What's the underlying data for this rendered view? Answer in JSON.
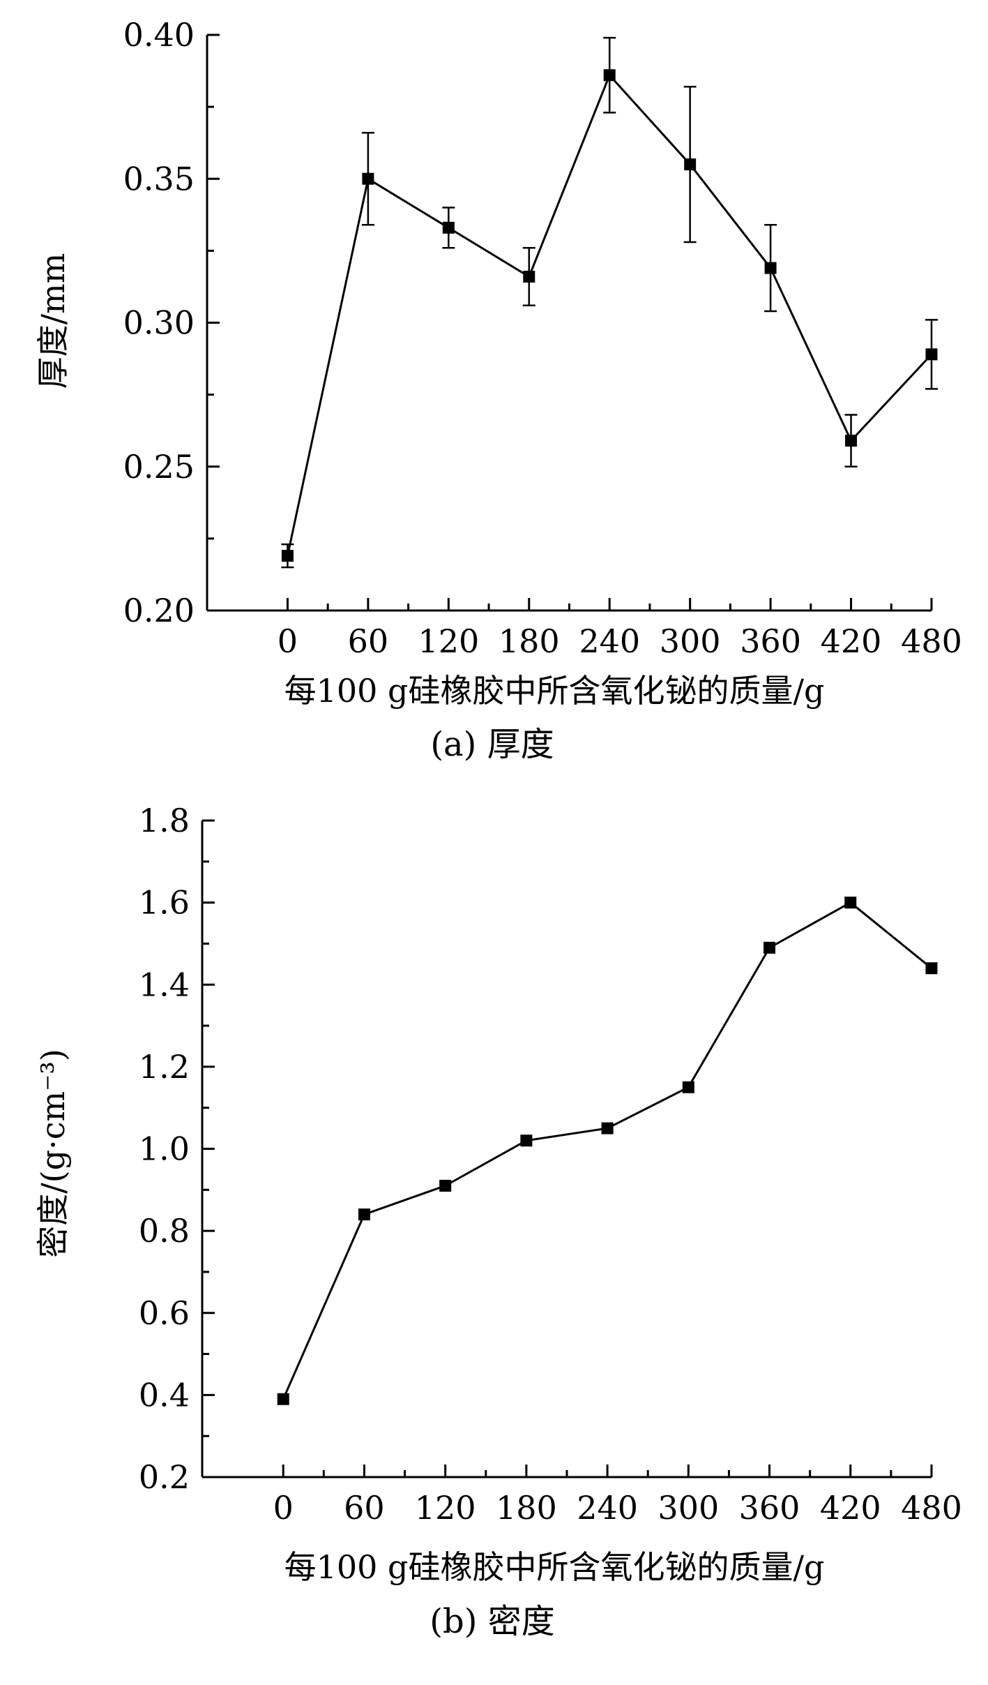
{
  "chart_data": [
    {
      "type": "line",
      "caption": "(a) 厚度",
      "xlabel": "每100 g硅橡胶中所含氧化铋的质量/g",
      "ylabel": "厚度/mm",
      "x": [
        0,
        60,
        120,
        180,
        240,
        300,
        360,
        420,
        480
      ],
      "xlim": [
        -60,
        480
      ],
      "xticks": [
        0,
        60,
        120,
        180,
        240,
        300,
        360,
        420,
        480
      ],
      "ylim": [
        0.2,
        0.4
      ],
      "yticks": [
        "0.20",
        "0.25",
        "0.30",
        "0.35",
        "0.40"
      ],
      "values": [
        0.219,
        0.35,
        0.333,
        0.316,
        0.386,
        0.355,
        0.319,
        0.259,
        0.289
      ],
      "error_bars": [
        0.004,
        0.016,
        0.007,
        0.01,
        0.013,
        0.027,
        0.015,
        0.009,
        0.012
      ],
      "marker": "square",
      "grid": false,
      "line_color": "#000000"
    },
    {
      "type": "line",
      "caption": "(b) 密度",
      "xlabel": "每100 g硅橡胶中所含氧化铋的质量/g",
      "ylabel": "密度/(g·cm⁻³)",
      "x": [
        0,
        60,
        120,
        180,
        240,
        300,
        360,
        420,
        480
      ],
      "xlim": [
        -60,
        480
      ],
      "xticks": [
        0,
        60,
        120,
        180,
        240,
        300,
        360,
        420,
        480
      ],
      "ylim": [
        0.2,
        1.8
      ],
      "yticks": [
        "0.2",
        "0.4",
        "0.6",
        "0.8",
        "1.0",
        "1.2",
        "1.4",
        "1.6",
        "1.8"
      ],
      "values": [
        0.39,
        0.84,
        0.91,
        1.02,
        1.05,
        1.15,
        1.49,
        1.6,
        1.44
      ],
      "marker": "square",
      "grid": false,
      "line_color": "#000000"
    }
  ]
}
